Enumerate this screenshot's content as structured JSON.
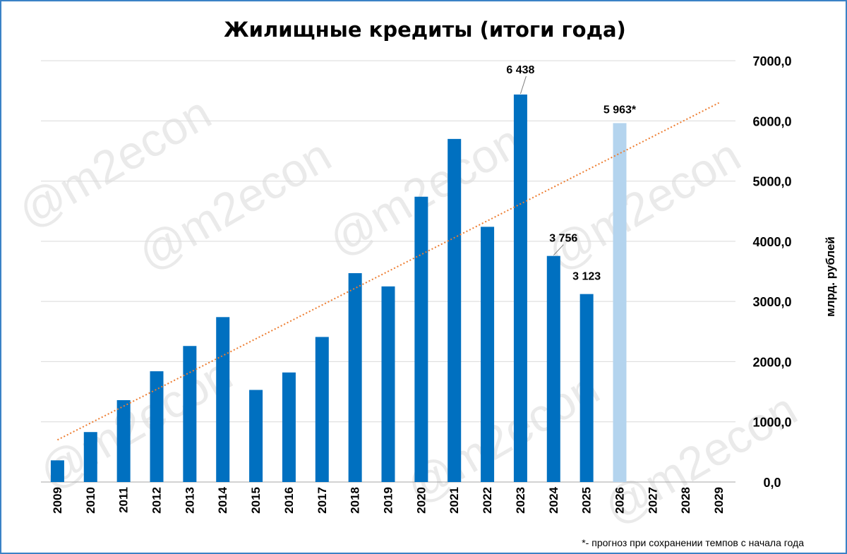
{
  "chart_data": {
    "type": "bar",
    "title": "Жилищные кредиты (итоги года)",
    "ylabel": "млрд. рублей",
    "xlabel": "",
    "ylim": [
      0,
      7000
    ],
    "yticks": [
      "0,0",
      "1000,0",
      "2000,0",
      "3000,0",
      "4000,0",
      "5000,0",
      "6000,0",
      "7000,0"
    ],
    "y_axis_side": "right",
    "grid": true,
    "categories": [
      "2009",
      "2010",
      "2011",
      "2012",
      "2013",
      "2014",
      "2015",
      "2016",
      "2017",
      "2018",
      "2019",
      "2020",
      "2021",
      "2022",
      "2023",
      "2024",
      "2025",
      "2026",
      "2027",
      "2028",
      "2029"
    ],
    "series": [
      {
        "values": [
          360,
          830,
          1360,
          1840,
          2260,
          2740,
          1530,
          1820,
          2410,
          3470,
          3250,
          4740,
          5700,
          4240,
          6438,
          3756,
          3123,
          5963,
          null,
          null,
          null
        ],
        "color": "#0070c0",
        "forecast_color": "#b4d4ee",
        "forecast_categories": [
          "2026"
        ]
      }
    ],
    "data_labels": [
      {
        "category": "2023",
        "text": "6 438"
      },
      {
        "category": "2024",
        "text": "3 756"
      },
      {
        "category": "2025",
        "text": "3 123"
      },
      {
        "category": "2026",
        "text": "5 963*"
      }
    ],
    "trendline": {
      "type": "linear",
      "color": "#ed7d31",
      "style": "dotted",
      "start": [
        2009,
        700
      ],
      "end": [
        2029,
        6300
      ]
    },
    "footnote": "*- прогноз при сохранении темпов с начала года",
    "watermark": "@m2econ"
  }
}
